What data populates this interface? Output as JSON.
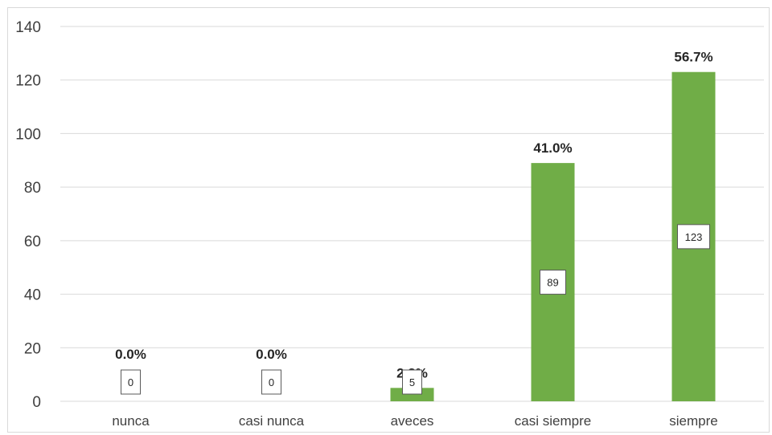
{
  "chart_data": {
    "type": "bar",
    "categories": [
      "nunca",
      "casi nunca",
      "aveces",
      "casi siempre",
      "siempre"
    ],
    "values": [
      0,
      0,
      5,
      89,
      123
    ],
    "percent_labels": [
      "0.0%",
      "0.0%",
      "2.3%",
      "41.0%",
      "56.7%"
    ],
    "value_labels": [
      "0",
      "0",
      "5",
      "89",
      "123"
    ],
    "ylim": [
      0,
      140
    ],
    "yticks": [
      0,
      20,
      40,
      60,
      80,
      100,
      120,
      140
    ],
    "ytick_labels": [
      "0",
      "20",
      "40",
      "60",
      "80",
      "100",
      "120",
      "140"
    ],
    "grid": true,
    "legend": "none",
    "colors": {
      "bar": "#70ad47",
      "grid": "#d9d9d9",
      "label_box_border": "#595959"
    }
  }
}
